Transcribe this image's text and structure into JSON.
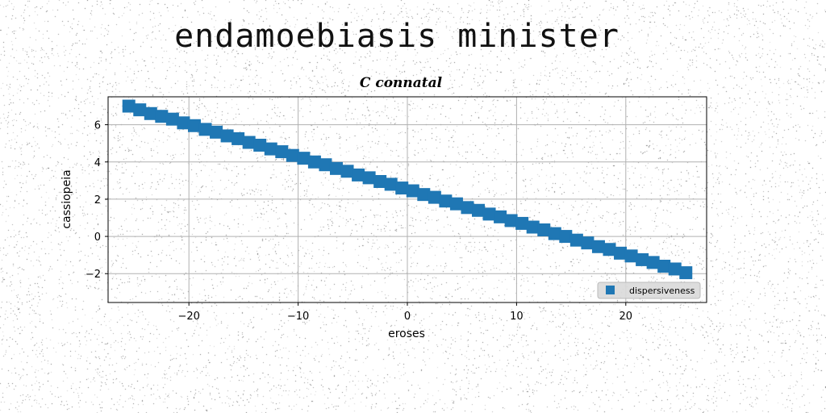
{
  "page_title": "endamoebiasis minister",
  "chart_data": {
    "type": "scatter",
    "title": "C connatal",
    "xlabel": "eroses",
    "ylabel": "cassiopeia",
    "xlim": [
      -27.4,
      27.4
    ],
    "ylim": [
      -3.55,
      7.5
    ],
    "xticks": [
      -20,
      -10,
      0,
      10,
      20
    ],
    "yticks": [
      -2,
      0,
      2,
      4,
      6
    ],
    "grid": true,
    "legend_position": "lower-right",
    "marker": "square",
    "series": [
      {
        "name": "dispersiveness",
        "color": "#1f77b4",
        "x": [
          -25.5,
          -24.5,
          -23.5,
          -22.5,
          -21.5,
          -20.5,
          -19.5,
          -18.5,
          -17.5,
          -16.5,
          -15.5,
          -14.5,
          -13.5,
          -12.5,
          -11.5,
          -10.5,
          -9.5,
          -8.5,
          -7.5,
          -6.5,
          -5.5,
          -4.5,
          -3.5,
          -2.5,
          -1.5,
          -0.5,
          0.5,
          1.5,
          2.5,
          3.5,
          4.5,
          5.5,
          6.5,
          7.5,
          8.5,
          9.5,
          10.5,
          11.5,
          12.5,
          13.5,
          14.5,
          15.5,
          16.5,
          17.5,
          18.5,
          19.5,
          20.5,
          21.5,
          22.5,
          23.5,
          24.5,
          25.5
        ],
        "y": [
          7.0,
          6.8,
          6.6,
          6.45,
          6.3,
          6.1,
          5.95,
          5.75,
          5.6,
          5.4,
          5.25,
          5.05,
          4.9,
          4.7,
          4.55,
          4.35,
          4.2,
          4.0,
          3.85,
          3.65,
          3.5,
          3.3,
          3.15,
          2.95,
          2.8,
          2.6,
          2.45,
          2.25,
          2.1,
          1.9,
          1.75,
          1.55,
          1.4,
          1.2,
          1.05,
          0.85,
          0.7,
          0.5,
          0.35,
          0.15,
          0.0,
          -0.2,
          -0.35,
          -0.55,
          -0.7,
          -0.9,
          -1.05,
          -1.25,
          -1.4,
          -1.6,
          -1.75,
          -1.95
        ]
      }
    ]
  }
}
